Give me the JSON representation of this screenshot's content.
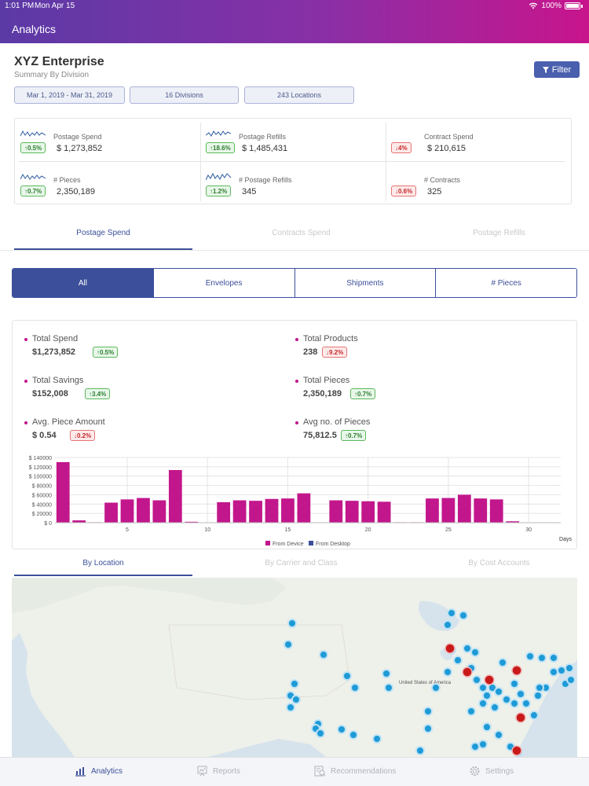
{
  "status_bar": {
    "time": "1:01 PM",
    "date": "Mon Apr 15",
    "battery": "100%"
  },
  "nav": {
    "title": "Analytics"
  },
  "header": {
    "title": "XYZ Enterprise",
    "subtitle": "Summary By Division",
    "filter_label": "Filter",
    "chips": [
      "Mar 1, 2019 - Mar 31, 2019",
      "16 Divisions",
      "243 Locations"
    ]
  },
  "kpis": [
    {
      "label": "Postage Spend",
      "badge": "↑0.5%",
      "trend": "up",
      "value": "$ 1,273,852"
    },
    {
      "label": "Postage Refills",
      "badge": "↑18.6%",
      "trend": "up",
      "value": "$ 1,485,431"
    },
    {
      "label": "Contract Spend",
      "badge": "↓4%",
      "trend": "down",
      "value": "$ 210,615"
    },
    {
      "label": "# Pieces",
      "badge": "↑0.7%",
      "trend": "up",
      "value": "2,350,189"
    },
    {
      "label": "# Postage Refills",
      "badge": "↑1.2%",
      "trend": "up",
      "value": "345"
    },
    {
      "label": "# Contracts",
      "badge": "↓0.6%",
      "trend": "down",
      "value": "325"
    }
  ],
  "main_tabs": [
    "Postage Spend",
    "Contracts Spend",
    "Postage Refills"
  ],
  "segments": [
    "All",
    "Envelopes",
    "Shipments",
    "# Pieces"
  ],
  "stats": [
    {
      "name": "Total Spend",
      "value": "$1,273,852",
      "badge": "↑0.5%",
      "trend": "up"
    },
    {
      "name": "Total Products",
      "value": "238",
      "badge": "↓9.2%",
      "trend": "down"
    },
    {
      "name": "Total Savings",
      "value": "$152,008",
      "badge": "↑3.4%",
      "trend": "up"
    },
    {
      "name": "Total Pieces",
      "value": "2,350,189",
      "badge": "↑0.7%",
      "trend": "up"
    },
    {
      "name": "Avg. Piece Amount",
      "value": "$ 0.54",
      "badge": "↓0.2%",
      "trend": "down"
    },
    {
      "name": "Avg no. of Pieces",
      "value": "75,812.5",
      "badge": "↑0.7%",
      "trend": "up"
    }
  ],
  "chart_data": {
    "type": "bar",
    "x": [
      1,
      2,
      3,
      4,
      5,
      6,
      7,
      8,
      9,
      10,
      11,
      12,
      13,
      14,
      15,
      16,
      17,
      18,
      19,
      20,
      21,
      22,
      23,
      24,
      25,
      26,
      27,
      28,
      29,
      30
    ],
    "series": [
      {
        "name": "From Device",
        "color": "#c2168c",
        "values": [
          130000,
          5000,
          1000,
          43000,
          50000,
          53000,
          48000,
          113000,
          2000,
          0,
          44000,
          48000,
          47000,
          51000,
          52000,
          63000,
          0,
          48000,
          47000,
          46000,
          45000,
          1000,
          1000,
          52000,
          53000,
          60000,
          52000,
          50000,
          3000,
          0
        ]
      },
      {
        "name": "From Desktop",
        "color": "#3b4f9a",
        "values": [
          0,
          0,
          0,
          0,
          0,
          0,
          0,
          0,
          0,
          0,
          0,
          0,
          0,
          0,
          0,
          0,
          0,
          0,
          0,
          0,
          0,
          0,
          0,
          0,
          0,
          0,
          0,
          0,
          0,
          0
        ]
      }
    ],
    "y_tick_labels": [
      "$ 0",
      "$ 20000",
      "$ 40000",
      "$ 60000",
      "$ 80000",
      "$ 100000",
      "$ 120000",
      "$ 140000"
    ],
    "y_ticks": [
      0,
      20000,
      40000,
      60000,
      80000,
      100000,
      120000,
      140000
    ],
    "x_tick_labels": [
      "5",
      "10",
      "15",
      "20",
      "25",
      "30"
    ],
    "x_ticks": [
      5,
      10,
      15,
      20,
      25,
      30
    ],
    "xlabel": "Days",
    "ylim": [
      0,
      140000
    ],
    "xlim": [
      0.5,
      32
    ]
  },
  "map_tabs": [
    "By Location",
    "By Carrier and Class",
    "By Cost Accounts"
  ],
  "map": {
    "country_label": "United States of America"
  },
  "bottom_nav": [
    "Analytics",
    "Reports",
    "Recommendations",
    "Settings"
  ]
}
